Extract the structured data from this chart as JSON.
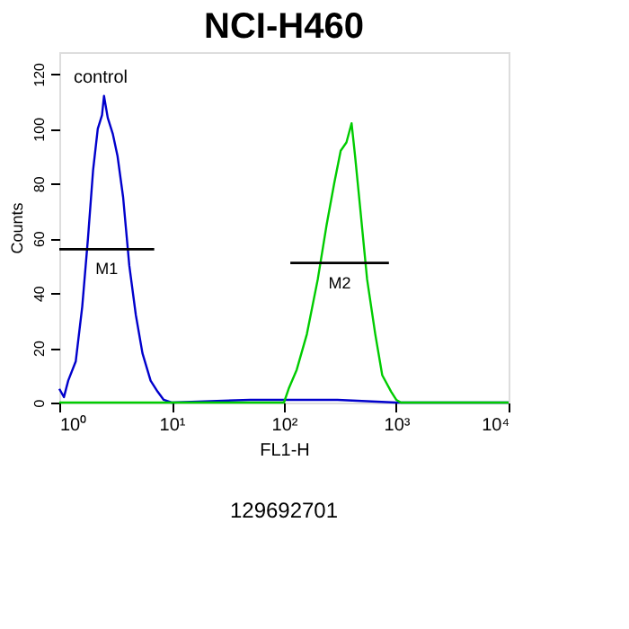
{
  "chart_data": {
    "type": "line",
    "title": "NCI-H460",
    "xlabel": "FL1-H",
    "ylabel": "Counts",
    "log": "x",
    "xlim": [
      1,
      10000
    ],
    "ylim": [
      0,
      128
    ],
    "xticks": [
      {
        "value": 1,
        "label": "10⁰"
      },
      {
        "value": 10,
        "label": "10¹"
      },
      {
        "value": 100,
        "label": "10²"
      },
      {
        "value": 1000,
        "label": "10³"
      },
      {
        "value": 10000,
        "label": "10⁴"
      }
    ],
    "yticks": [
      0,
      20,
      40,
      60,
      80,
      100,
      120
    ],
    "grid": false,
    "series": [
      {
        "color": "#0000cc",
        "x": [
          1,
          1.1,
          1.2,
          1.4,
          1.6,
          1.8,
          2.0,
          2.2,
          2.4,
          2.5,
          2.7,
          3.0,
          3.3,
          3.7,
          4.2,
          4.8,
          5.5,
          6.5,
          7.5,
          8.5,
          10,
          50,
          100,
          300,
          1000,
          10000
        ],
        "values": [
          5,
          2,
          8,
          15,
          35,
          60,
          85,
          100,
          105,
          112,
          104,
          98,
          90,
          75,
          50,
          32,
          18,
          8,
          4,
          1,
          0,
          1,
          1,
          1,
          0,
          0
        ]
      },
      {
        "color": "#00cc00",
        "x": [
          1,
          100,
          110,
          130,
          160,
          200,
          240,
          280,
          320,
          360,
          400,
          430,
          480,
          550,
          650,
          750,
          900,
          1000,
          1100,
          10000
        ],
        "values": [
          0,
          0,
          5,
          12,
          25,
          45,
          65,
          80,
          92,
          95,
          102,
          90,
          70,
          45,
          25,
          10,
          4,
          1,
          0,
          0
        ]
      },
      {
        "name": "M1",
        "color": "#000000",
        "x": [
          1,
          7
        ],
        "values": [
          56,
          56
        ]
      },
      {
        "name": "M2",
        "color": "#000000",
        "x": [
          114,
          860
        ],
        "values": [
          51,
          51
        ]
      }
    ],
    "annotations": [
      "control",
      "129692701"
    ]
  }
}
